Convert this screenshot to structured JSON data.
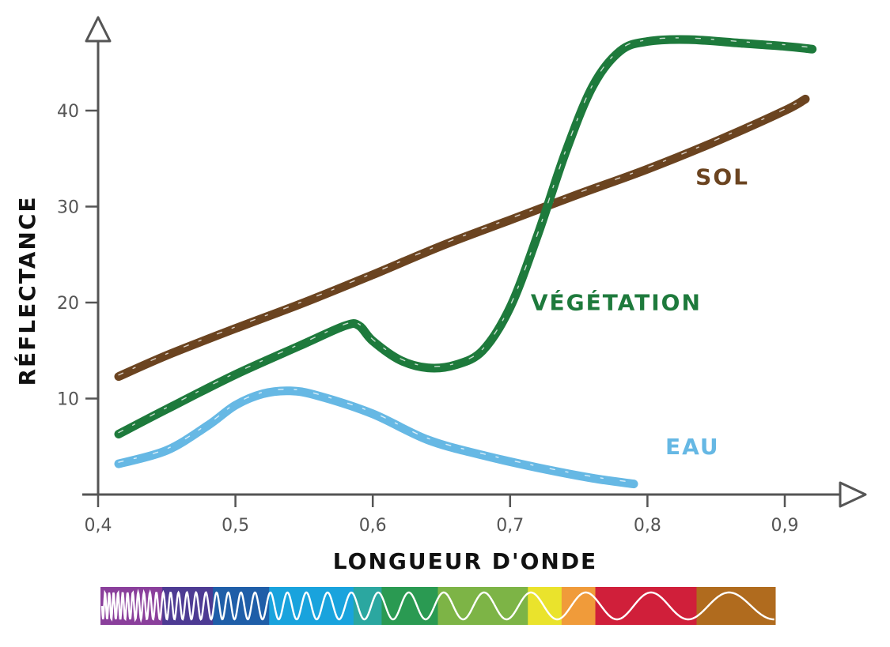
{
  "chart_data": {
    "type": "line",
    "xlabel": "LONGUEUR D'ONDE",
    "ylabel": "RÉFLECTANCE",
    "xlim": [
      0.4,
      0.95
    ],
    "ylim": [
      0,
      50
    ],
    "x_ticks": [
      {
        "value": 0.4,
        "label": "0,4"
      },
      {
        "value": 0.5,
        "label": "0,5"
      },
      {
        "value": 0.6,
        "label": "0,6"
      },
      {
        "value": 0.7,
        "label": "0,7"
      },
      {
        "value": 0.8,
        "label": "0,8"
      },
      {
        "value": 0.9,
        "label": "0,9"
      }
    ],
    "y_ticks": [
      {
        "value": 10,
        "label": "10"
      },
      {
        "value": 20,
        "label": "20"
      },
      {
        "value": 30,
        "label": "30"
      },
      {
        "value": 40,
        "label": "40"
      }
    ],
    "grid": false,
    "series": [
      {
        "name": "SOL",
        "color": "#6b4420",
        "label_at": [
          0.835,
          32.3
        ],
        "x": [
          0.415,
          0.45,
          0.5,
          0.55,
          0.6,
          0.65,
          0.7,
          0.75,
          0.8,
          0.85,
          0.9,
          0.915
        ],
        "y": [
          12.3,
          14.5,
          17.3,
          20.0,
          22.9,
          25.9,
          28.6,
          31.3,
          33.9,
          36.8,
          40.0,
          41.2
        ]
      },
      {
        "name": "VÉGÉTATION",
        "color": "#1e7a3c",
        "label_at": [
          0.715,
          19.2
        ],
        "x": [
          0.415,
          0.45,
          0.5,
          0.55,
          0.58,
          0.59,
          0.6,
          0.62,
          0.64,
          0.66,
          0.68,
          0.7,
          0.72,
          0.74,
          0.76,
          0.78,
          0.8,
          0.83,
          0.87,
          0.9,
          0.92
        ],
        "y": [
          6.3,
          8.9,
          12.5,
          15.7,
          17.6,
          17.6,
          16.0,
          14.0,
          13.2,
          13.5,
          15.0,
          19.5,
          27.0,
          35.5,
          42.5,
          46.2,
          47.2,
          47.4,
          47.0,
          46.7,
          46.4
        ]
      },
      {
        "name": "EAU",
        "color": "#66b8e4",
        "label_at": [
          0.813,
          4.2
        ],
        "x": [
          0.415,
          0.45,
          0.48,
          0.5,
          0.52,
          0.54,
          0.56,
          0.6,
          0.64,
          0.68,
          0.72,
          0.76,
          0.79
        ],
        "y": [
          3.2,
          4.6,
          7.2,
          9.3,
          10.5,
          10.8,
          10.3,
          8.4,
          5.7,
          4.1,
          2.8,
          1.7,
          1.1
        ]
      }
    ]
  },
  "spectrum": {
    "bands": [
      {
        "color": "#8a3f9b",
        "from": 0.4,
        "to": 0.455
      },
      {
        "color": "#4d3b93",
        "from": 0.455,
        "to": 0.5
      },
      {
        "color": "#1f5ea8",
        "from": 0.5,
        "to": 0.55
      },
      {
        "color": "#19a3dd",
        "from": 0.55,
        "to": 0.625
      },
      {
        "color": "#2ba7a0",
        "from": 0.625,
        "to": 0.65
      },
      {
        "color": "#2a9a52",
        "from": 0.65,
        "to": 0.7
      },
      {
        "color": "#7db446",
        "from": 0.7,
        "to": 0.78
      },
      {
        "color": "#eae32c",
        "from": 0.78,
        "to": 0.81
      },
      {
        "color": "#f09b3a",
        "from": 0.81,
        "to": 0.84
      },
      {
        "color": "#d01f3a",
        "from": 0.84,
        "to": 0.93
      },
      {
        "color": "#b06b1e",
        "from": 0.93,
        "to": 1.0
      }
    ]
  }
}
